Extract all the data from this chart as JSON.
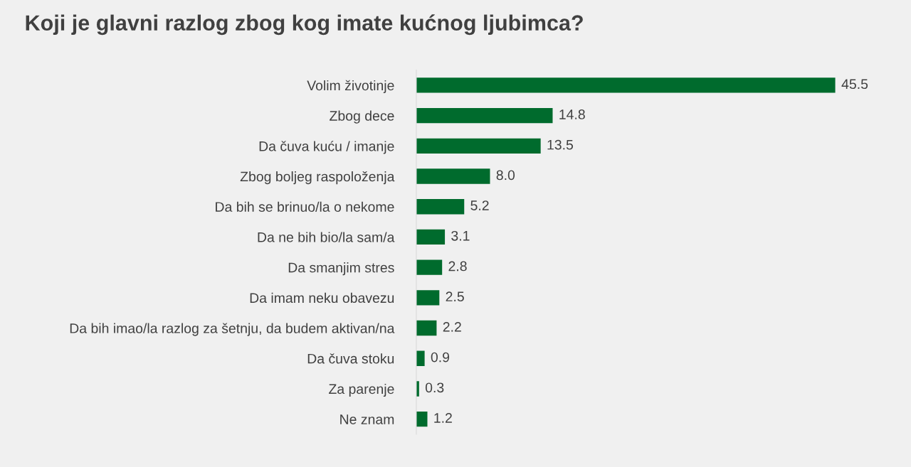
{
  "chart_data": {
    "type": "bar",
    "orientation": "horizontal",
    "title": "Koji je glavni razlog zbog kog imate kućnog ljubimca?",
    "categories": [
      "Volim životinje",
      "Zbog dece",
      "Da čuva kuću / imanje",
      "Zbog boljeg raspoloženja",
      "Da bih se brinuo/la o nekome",
      "Da ne bih bio/la sam/a",
      "Da smanjim stres",
      "Da imam neku obavezu",
      "Da bih imao/la razlog za šetnju, da budem aktivan/na",
      "Da čuva stoku",
      "Za parenje",
      "Ne znam"
    ],
    "values": [
      45.5,
      14.8,
      13.5,
      8.0,
      5.2,
      3.1,
      2.8,
      2.5,
      2.2,
      0.9,
      0.3,
      1.2
    ],
    "value_labels": [
      "45.5",
      "14.8",
      "13.5",
      "8.0",
      "5.2",
      "3.1",
      "2.8",
      "2.5",
      "2.2",
      "0.9",
      "0.3",
      "1.2"
    ],
    "color": "#006b2d",
    "grid": false,
    "legend": false
  }
}
